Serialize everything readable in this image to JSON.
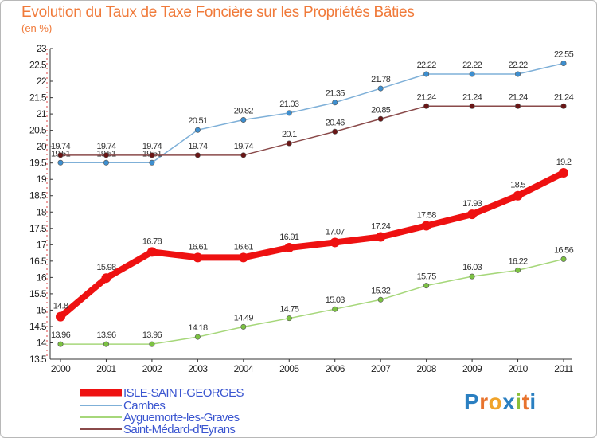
{
  "title": "Evolution du Taux de Taxe Foncière sur les Propriétés Bâties",
  "unit_label": "(en %)",
  "logo": {
    "text": "Proxiti",
    "letters": [
      "P",
      "r",
      "o",
      "x",
      "i",
      "t",
      "i"
    ],
    "colors": [
      "#2a7fc1",
      "#e8732d",
      "#f0a32a",
      "#2a7fc1",
      "#8bbf3a",
      "#e8732d",
      "#2a7fc1"
    ]
  },
  "chart_data": {
    "type": "line",
    "title": "Evolution du Taux de Taxe Foncière sur les Propriétés Bâties",
    "ylabel": "(en %)",
    "xlabel": "",
    "x": [
      "2000",
      "2001",
      "2002",
      "2003",
      "2004",
      "2005",
      "2006",
      "2007",
      "2008",
      "2009",
      "2010",
      "2011"
    ],
    "ylim": [
      13.5,
      23
    ],
    "yticks": [
      13.5,
      14,
      14.5,
      15,
      15.5,
      16,
      16.5,
      17,
      17.5,
      18,
      18.5,
      19,
      19.5,
      20,
      20.5,
      21,
      21.5,
      22,
      22.5,
      23
    ],
    "ytick_labels": [
      "13.5",
      "14",
      "14.5",
      "15",
      "15.5",
      "16",
      "16.5",
      "17",
      "17.5",
      "18",
      "18.5",
      "19",
      "19.5",
      "20",
      "20.5",
      "21",
      "21.5",
      "22",
      "22.5",
      "23"
    ],
    "grid": false,
    "legend_position": "bottom-left",
    "series": [
      {
        "name": "ISLE-SAINT-GEORGES",
        "color": "#ee1111",
        "label_color": "#333333",
        "emphasis": true,
        "values": [
          14.8,
          15.98,
          16.78,
          16.61,
          16.61,
          16.91,
          17.07,
          17.24,
          17.58,
          17.93,
          18.5,
          19.2
        ],
        "labels": [
          "14.8",
          "15.98",
          "16.78",
          "16.61",
          "16.61",
          "16.91",
          "17.07",
          "17.24",
          "17.58",
          "17.93",
          "18.5",
          "19.2"
        ]
      },
      {
        "name": "Cambes",
        "color": "#7fb0d8",
        "marker_color": "#3d8fd0",
        "label_color": "#333333",
        "values": [
          19.51,
          19.51,
          19.51,
          20.51,
          20.82,
          21.03,
          21.35,
          21.78,
          22.22,
          22.22,
          22.22,
          22.55
        ],
        "labels": [
          "19.51",
          "19.51",
          "19.51",
          "20.51",
          "20.82",
          "21.03",
          "21.35",
          "21.78",
          "22.22",
          "22.22",
          "22.22",
          "22.55"
        ]
      },
      {
        "name": "Ayguemorte-les-Graves",
        "color": "#a6d77a",
        "marker_color": "#7cc242",
        "label_color": "#333333",
        "values": [
          13.96,
          13.96,
          13.96,
          14.18,
          14.49,
          14.75,
          15.03,
          15.32,
          15.75,
          16.03,
          16.22,
          16.56
        ],
        "labels": [
          "13.96",
          "13.96",
          "13.96",
          "14.18",
          "14.49",
          "14.75",
          "15.03",
          "15.32",
          "15.75",
          "16.03",
          "16.22",
          "16.56"
        ]
      },
      {
        "name": "Saint-Médard-d'Eyrans",
        "color": "#8a4a4a",
        "marker_color": "#6a1616",
        "label_color": "#333333",
        "values": [
          19.74,
          19.74,
          19.74,
          19.74,
          19.74,
          20.1,
          20.46,
          20.85,
          21.24,
          21.24,
          21.24,
          21.24
        ],
        "labels": [
          "19.74",
          "19.74",
          "19.74",
          "19.74",
          "19.74",
          "20.1",
          "20.46",
          "20.85",
          "21.24",
          "21.24",
          "21.24",
          "21.24"
        ]
      }
    ]
  }
}
